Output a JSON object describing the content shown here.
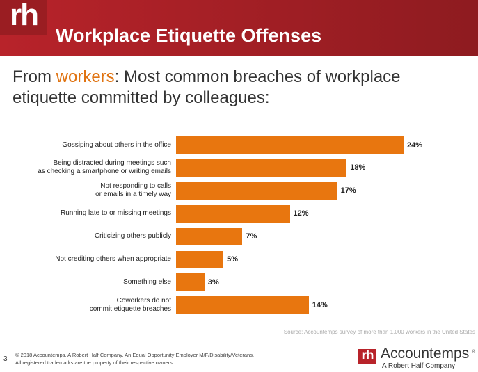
{
  "header": {
    "logo": "rh",
    "title": "Workplace Etiquette Offenses"
  },
  "subtitle": {
    "lead": "From",
    "highlight": "workers",
    "rest": ": Most common breaches of workplace etiquette committed by colleagues:"
  },
  "chart_data": {
    "type": "barh",
    "categories": [
      "Gossiping about others in the office",
      "Being distracted during meetings such\nas checking a smartphone or writing emails",
      "Not responding to calls\nor emails in a timely way",
      "Running late to or missing meetings",
      "Criticizing others publicly",
      "Not crediting others when appropriate",
      "Something else",
      "Coworkers do not\ncommit etiquette breaches"
    ],
    "values": [
      24,
      18,
      17,
      12,
      7,
      5,
      3,
      14
    ],
    "value_labels": [
      "24%",
      "18%",
      "17%",
      "12%",
      "7%",
      "5%",
      "3%",
      "14%"
    ],
    "color": "#e8760f"
  },
  "source": "Source: Accountemps survey of more than 1,000 workers in the United States",
  "footer": {
    "page": "3",
    "lines": [
      "© 2018 Accountemps. A Robert Half Company. An Equal Opportunity Employer M/F/Disability/Veterans.",
      "All registered trademarks are the property of their respective owners."
    ],
    "brand_mark": "rh",
    "brand": "Accountemps",
    "registered": "®",
    "brand_sub": "A Robert Half Company"
  }
}
